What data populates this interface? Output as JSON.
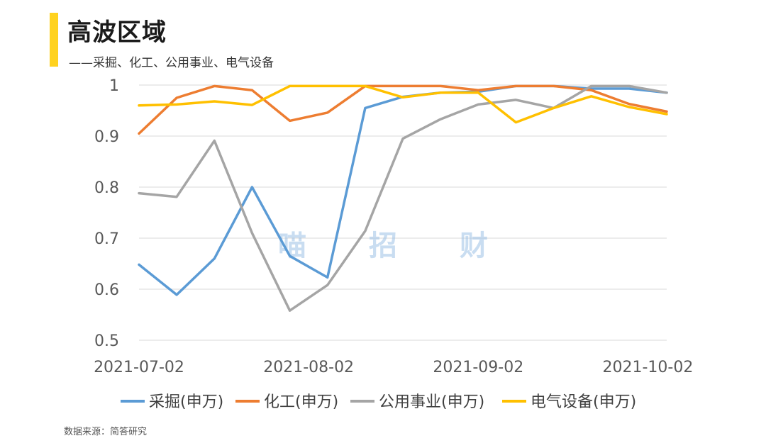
{
  "header": {
    "title": "高波区域",
    "subtitle": "——采掘、化工、公用事业、电气设备"
  },
  "footer": {
    "source": "数据来源：简答研究"
  },
  "watermark": [
    "喵",
    "招",
    "财"
  ],
  "chart_data": {
    "type": "line",
    "ylim": [
      0.5,
      1.0
    ],
    "yticks": [
      0.5,
      0.6,
      0.7,
      0.8,
      0.9,
      1.0
    ],
    "ytick_labels": [
      "0.5",
      "0.6",
      "0.7",
      "0.8",
      "0.9",
      "1"
    ],
    "x": [
      "2021-07-02",
      "2021-07-09",
      "2021-07-16",
      "2021-07-23",
      "2021-07-30",
      "2021-08-06",
      "2021-08-13",
      "2021-08-20",
      "2021-08-27",
      "2021-09-03",
      "2021-09-10",
      "2021-09-17",
      "2021-09-24",
      "2021-10-01",
      "2021-10-08"
    ],
    "xtick_labels": [
      "2021-07-02",
      "2021-08-02",
      "2021-09-02",
      "2021-10-02"
    ],
    "xtick_positions": [
      0,
      4.5,
      9,
      13.5
    ],
    "grid": true,
    "legend_position": "bottom",
    "series": [
      {
        "name": "采掘(申万)",
        "color": "#5B9BD5",
        "values": [
          0.648,
          0.589,
          0.66,
          0.8,
          0.665,
          0.623,
          0.955,
          0.977,
          0.985,
          0.987,
          0.998,
          0.998,
          0.993,
          0.993,
          0.985
        ]
      },
      {
        "name": "化工(申万)",
        "color": "#ED7D31",
        "values": [
          0.905,
          0.975,
          0.998,
          0.99,
          0.93,
          0.946,
          0.998,
          0.998,
          0.998,
          0.99,
          0.998,
          0.998,
          0.99,
          0.963,
          0.948
        ]
      },
      {
        "name": "公用事业(申万)",
        "color": "#A5A5A5",
        "values": [
          0.788,
          0.781,
          0.891,
          0.71,
          0.558,
          0.608,
          0.714,
          0.895,
          0.933,
          0.962,
          0.971,
          0.955,
          0.998,
          0.998,
          0.985
        ]
      },
      {
        "name": "电气设备(申万)",
        "color": "#FFC000",
        "values": [
          0.96,
          0.962,
          0.968,
          0.961,
          0.998,
          0.998,
          0.998,
          0.976,
          0.985,
          0.985,
          0.927,
          0.955,
          0.978,
          0.957,
          0.943
        ]
      }
    ]
  }
}
